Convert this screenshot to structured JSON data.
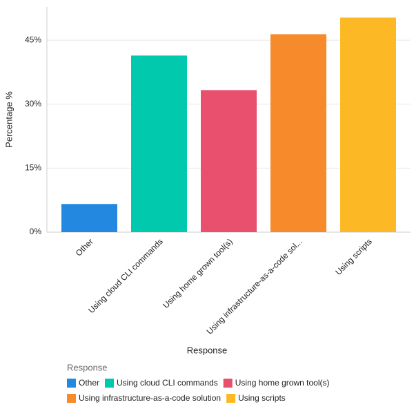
{
  "chart_data": {
    "type": "bar",
    "x_label": "Response",
    "y_label": "Percentage %",
    "legend_title": "Response",
    "categories": [
      "Other",
      "Using cloud CLI commands",
      "Using home grown tool(s)",
      "Using infrastructure-as-a-code sol...",
      "Using scripts"
    ],
    "series": [
      {
        "name": "Other",
        "color": "#2389e0",
        "values": [
          6.6,
          null,
          null,
          null,
          null
        ]
      },
      {
        "name": "Using cloud CLI commands",
        "color": "#00c9ae",
        "values": [
          null,
          41.4,
          null,
          null,
          null
        ]
      },
      {
        "name": "Using home grown tool(s)",
        "color": "#e8506e",
        "values": [
          null,
          null,
          33.3,
          null,
          null
        ]
      },
      {
        "name": "Using infrastructure-as-a-code solution",
        "color": "#f78b2b",
        "values": [
          null,
          null,
          null,
          46.4,
          null
        ]
      },
      {
        "name": "Using scripts",
        "color": "#fdb825",
        "values": [
          null,
          null,
          null,
          null,
          50.3
        ]
      }
    ],
    "ylim": [
      0,
      52.8
    ],
    "yticks": [
      {
        "value": 0,
        "label": "0%"
      },
      {
        "value": 15,
        "label": "15%"
      },
      {
        "value": 30,
        "label": "30%"
      },
      {
        "value": 45,
        "label": "45%"
      }
    ],
    "grid": true
  }
}
